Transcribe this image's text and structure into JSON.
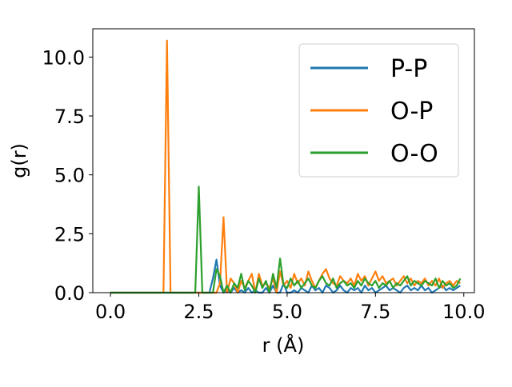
{
  "chart_data": {
    "type": "line",
    "title": "",
    "xlabel": "r (Å)",
    "ylabel": "g(r)",
    "xlim": [
      -0.5,
      10.3
    ],
    "ylim": [
      0.0,
      11.2
    ],
    "grid": false,
    "legend_position": "top-right",
    "x_ticks": [
      0.0,
      2.5,
      5.0,
      7.5,
      10.0
    ],
    "x_tick_labels": [
      "0.0",
      "2.5",
      "5.0",
      "7.5",
      "10.0"
    ],
    "y_ticks": [
      0.0,
      2.5,
      5.0,
      7.5,
      10.0
    ],
    "y_tick_labels": [
      "0.0",
      "2.5",
      "5.0",
      "7.5",
      "10.0"
    ],
    "series": [
      {
        "name": "P-P",
        "color": "#1f77b4",
        "x": [
          0.0,
          1.5,
          2.8,
          2.9,
          3.0,
          3.1,
          3.2,
          3.3,
          3.4,
          3.5,
          3.6,
          3.7,
          3.8,
          3.9,
          4.0,
          4.1,
          4.2,
          4.3,
          4.4,
          4.5,
          4.6,
          4.7,
          4.8,
          4.9,
          5.0,
          5.1,
          5.2,
          5.3,
          5.4,
          5.5,
          5.6,
          5.7,
          5.8,
          5.9,
          6.0,
          6.1,
          6.2,
          6.3,
          6.4,
          6.5,
          6.6,
          6.7,
          6.8,
          6.9,
          7.0,
          7.1,
          7.2,
          7.3,
          7.4,
          7.5,
          7.6,
          7.7,
          7.8,
          7.9,
          8.0,
          8.1,
          8.2,
          8.3,
          8.4,
          8.5,
          8.6,
          8.7,
          8.8,
          8.9,
          9.0,
          9.1,
          9.2,
          9.3,
          9.4,
          9.5,
          9.6,
          9.7,
          9.8,
          9.9
        ],
        "y": [
          0.0,
          0.0,
          0.0,
          0.6,
          1.4,
          0.3,
          0.0,
          0.1,
          0.0,
          0.2,
          0.0,
          0.1,
          0.0,
          0.2,
          0.0,
          0.1,
          0.0,
          0.0,
          0.2,
          0.0,
          0.3,
          0.0,
          0.0,
          0.4,
          0.0,
          0.0,
          0.1,
          0.0,
          0.2,
          0.1,
          0.0,
          0.3,
          0.1,
          0.2,
          0.0,
          0.3,
          0.2,
          0.0,
          0.1,
          0.3,
          0.1,
          0.0,
          0.2,
          0.1,
          0.2,
          0.0,
          0.3,
          0.1,
          0.2,
          0.0,
          0.1,
          0.2,
          0.3,
          0.1,
          0.2,
          0.1,
          0.0,
          0.2,
          0.3,
          0.1,
          0.2,
          0.1,
          0.3,
          0.1,
          0.2,
          0.0,
          0.1,
          0.2,
          0.3,
          0.1,
          0.2,
          0.1,
          0.2,
          0.3
        ]
      },
      {
        "name": "O-P",
        "color": "#ff7f0e",
        "x": [
          0.0,
          1.5,
          1.6,
          1.7,
          1.8,
          3.0,
          3.1,
          3.2,
          3.3,
          3.4,
          3.5,
          3.6,
          3.7,
          3.8,
          3.9,
          4.0,
          4.1,
          4.2,
          4.3,
          4.4,
          4.5,
          4.6,
          4.7,
          4.8,
          4.9,
          5.0,
          5.1,
          5.2,
          5.3,
          5.4,
          5.5,
          5.6,
          5.7,
          5.8,
          5.9,
          6.0,
          6.1,
          6.2,
          6.3,
          6.4,
          6.5,
          6.6,
          6.7,
          6.8,
          6.9,
          7.0,
          7.1,
          7.2,
          7.3,
          7.4,
          7.5,
          7.6,
          7.7,
          7.8,
          7.9,
          8.0,
          8.1,
          8.2,
          8.3,
          8.4,
          8.5,
          8.6,
          8.7,
          8.8,
          8.9,
          9.0,
          9.1,
          9.2,
          9.3,
          9.4,
          9.5,
          9.6,
          9.7,
          9.8,
          9.9
        ],
        "y": [
          0.0,
          0.0,
          10.7,
          0.0,
          0.0,
          0.0,
          0.4,
          3.2,
          0.0,
          0.6,
          0.4,
          0.0,
          0.5,
          0.2,
          0.5,
          0.8,
          0.0,
          0.8,
          0.3,
          0.4,
          0.2,
          0.6,
          0.0,
          0.9,
          0.3,
          0.5,
          0.2,
          0.8,
          0.4,
          0.6,
          0.3,
          0.9,
          0.5,
          0.2,
          0.5,
          0.8,
          1.0,
          0.6,
          0.4,
          0.3,
          0.7,
          0.5,
          0.4,
          0.6,
          0.3,
          0.8,
          0.5,
          0.7,
          0.3,
          0.6,
          0.9,
          0.5,
          0.7,
          0.4,
          0.5,
          0.6,
          0.3,
          0.5,
          0.7,
          0.4,
          0.6,
          0.3,
          0.5,
          0.4,
          0.6,
          0.3,
          0.5,
          0.3,
          0.6,
          0.2,
          0.4,
          0.5,
          0.3,
          0.5,
          0.4
        ]
      },
      {
        "name": "O-O",
        "color": "#2ca02c",
        "x": [
          0.0,
          2.3,
          2.4,
          2.5,
          2.6,
          2.7,
          2.8,
          2.9,
          3.0,
          3.1,
          3.2,
          3.3,
          3.4,
          3.5,
          3.6,
          3.7,
          3.8,
          3.9,
          4.0,
          4.1,
          4.2,
          4.3,
          4.4,
          4.5,
          4.6,
          4.7,
          4.8,
          4.9,
          5.0,
          5.1,
          5.2,
          5.3,
          5.4,
          5.5,
          5.6,
          5.7,
          5.8,
          5.9,
          6.0,
          6.1,
          6.2,
          6.3,
          6.4,
          6.5,
          6.6,
          6.7,
          6.8,
          6.9,
          7.0,
          7.1,
          7.2,
          7.3,
          7.4,
          7.5,
          7.6,
          7.7,
          7.8,
          7.9,
          8.0,
          8.1,
          8.2,
          8.3,
          8.4,
          8.5,
          8.6,
          8.7,
          8.8,
          8.9,
          9.0,
          9.1,
          9.2,
          9.3,
          9.4,
          9.5,
          9.6,
          9.7,
          9.8,
          9.9
        ],
        "y": [
          0.0,
          0.0,
          0.0,
          4.5,
          0.0,
          0.0,
          0.0,
          0.0,
          1.0,
          0.7,
          0.0,
          0.3,
          0.0,
          0.4,
          0.2,
          0.8,
          0.1,
          0.5,
          0.3,
          0.0,
          0.6,
          0.2,
          0.5,
          0.0,
          0.8,
          0.2,
          1.45,
          0.3,
          0.2,
          0.6,
          0.3,
          0.5,
          0.2,
          0.4,
          0.6,
          0.3,
          0.2,
          0.5,
          0.7,
          0.4,
          0.3,
          0.6,
          0.2,
          0.4,
          0.5,
          0.3,
          0.4,
          0.2,
          0.5,
          0.3,
          0.6,
          0.4,
          0.3,
          0.5,
          0.2,
          0.4,
          0.3,
          0.5,
          0.2,
          0.4,
          0.3,
          0.5,
          0.7,
          0.3,
          0.5,
          0.4,
          0.3,
          0.5,
          0.4,
          0.3,
          0.6,
          0.2,
          0.5,
          0.3,
          0.4,
          0.2,
          0.3,
          0.6
        ]
      }
    ]
  }
}
